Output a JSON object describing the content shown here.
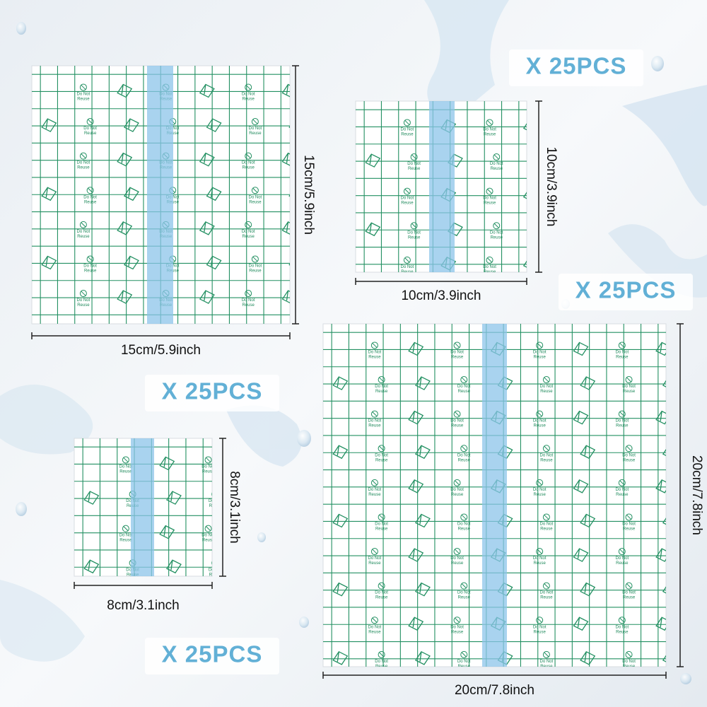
{
  "products": [
    {
      "width": "15cm/5.9inch",
      "height": "15cm/5.9inch",
      "quantity": "X 25PCS"
    },
    {
      "width": "10cm/3.9inch",
      "height": "10cm/3.9inch",
      "quantity": "X 25PCS"
    },
    {
      "width": "8cm/3.1inch",
      "height": "8cm/3.1inch",
      "quantity": "X 25PCS"
    },
    {
      "width": "20cm/7.8inch",
      "height": "20cm/7.8inch",
      "quantity": "X 25PCS"
    }
  ],
  "film_text": {
    "line1": "Do Not",
    "line2": "Reuse"
  }
}
